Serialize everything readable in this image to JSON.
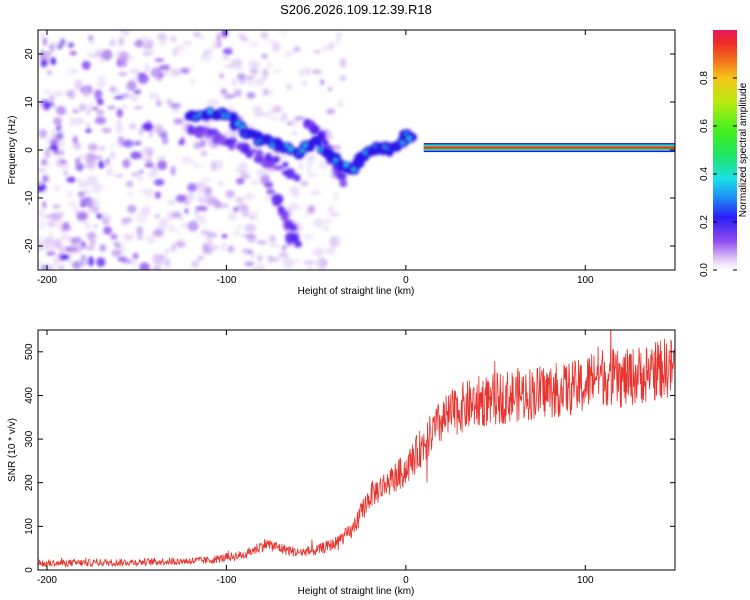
{
  "title": "S206.2026.109.12.39.R18",
  "chart_data": [
    {
      "type": "heatmap",
      "title": "S206.2026.109.12.39.R18",
      "xlabel": "Height of straight line (km)",
      "ylabel": "Frequency (Hz)",
      "xlim": [
        -205,
        150
      ],
      "ylim": [
        -25,
        25
      ],
      "xticks": [
        -200,
        -100,
        0,
        100
      ],
      "yticks": [
        -20,
        -10,
        0,
        10,
        20
      ],
      "colorbar": {
        "label": "Normalized spectral amplitude",
        "range": [
          0,
          1
        ],
        "ticks": [
          0.0,
          0.2,
          0.4,
          0.6,
          0.8
        ]
      },
      "ridge": {
        "x": [
          -122,
          -110,
          -100,
          -90,
          -80,
          -70,
          -60,
          -50,
          -40,
          -35,
          -30,
          -25,
          -20,
          -15,
          -10,
          -5,
          0,
          3,
          10,
          150
        ],
        "y": [
          6.5,
          7.5,
          7.5,
          4,
          2,
          1,
          -1,
          2,
          -2,
          -3,
          -4,
          -2,
          0,
          0.5,
          0,
          0.5,
          3,
          2.5,
          0.5,
          0.5
        ]
      },
      "branches": [
        {
          "x": [
            -120,
            -110,
            -100,
            -90,
            -80,
            -70,
            -60
          ],
          "y": [
            4.5,
            3.5,
            2,
            0,
            -1.5,
            -3,
            -6
          ]
        },
        {
          "x": [
            -75,
            -70,
            -65,
            -60
          ],
          "y": [
            -8,
            -12,
            -16,
            -20
          ]
        },
        {
          "x": [
            -55,
            -50,
            -45,
            -40,
            -35
          ],
          "y": [
            6,
            4,
            1,
            -3,
            -8
          ]
        }
      ]
    },
    {
      "type": "line",
      "xlabel": "Height of straight line (km)",
      "ylabel": "SNR (10 * v/v)",
      "xlim": [
        -205,
        150
      ],
      "ylim": [
        0,
        550
      ],
      "xticks": [
        -200,
        -100,
        0,
        100
      ],
      "yticks": [
        0,
        100,
        200,
        300,
        400,
        500
      ],
      "color": "#e8332e",
      "series": [
        {
          "name": "SNR",
          "x": [
            -205,
            -150,
            -110,
            -90,
            -78,
            -70,
            -60,
            -50,
            -40,
            -30,
            -20,
            -10,
            0,
            10,
            20,
            30,
            40,
            60,
            80,
            100,
            105,
            120,
            140,
            150
          ],
          "y": [
            15,
            18,
            22,
            35,
            60,
            50,
            40,
            45,
            60,
            90,
            170,
            200,
            230,
            290,
            340,
            370,
            385,
            400,
            410,
            420,
            450,
            435,
            460,
            465
          ]
        }
      ]
    }
  ]
}
